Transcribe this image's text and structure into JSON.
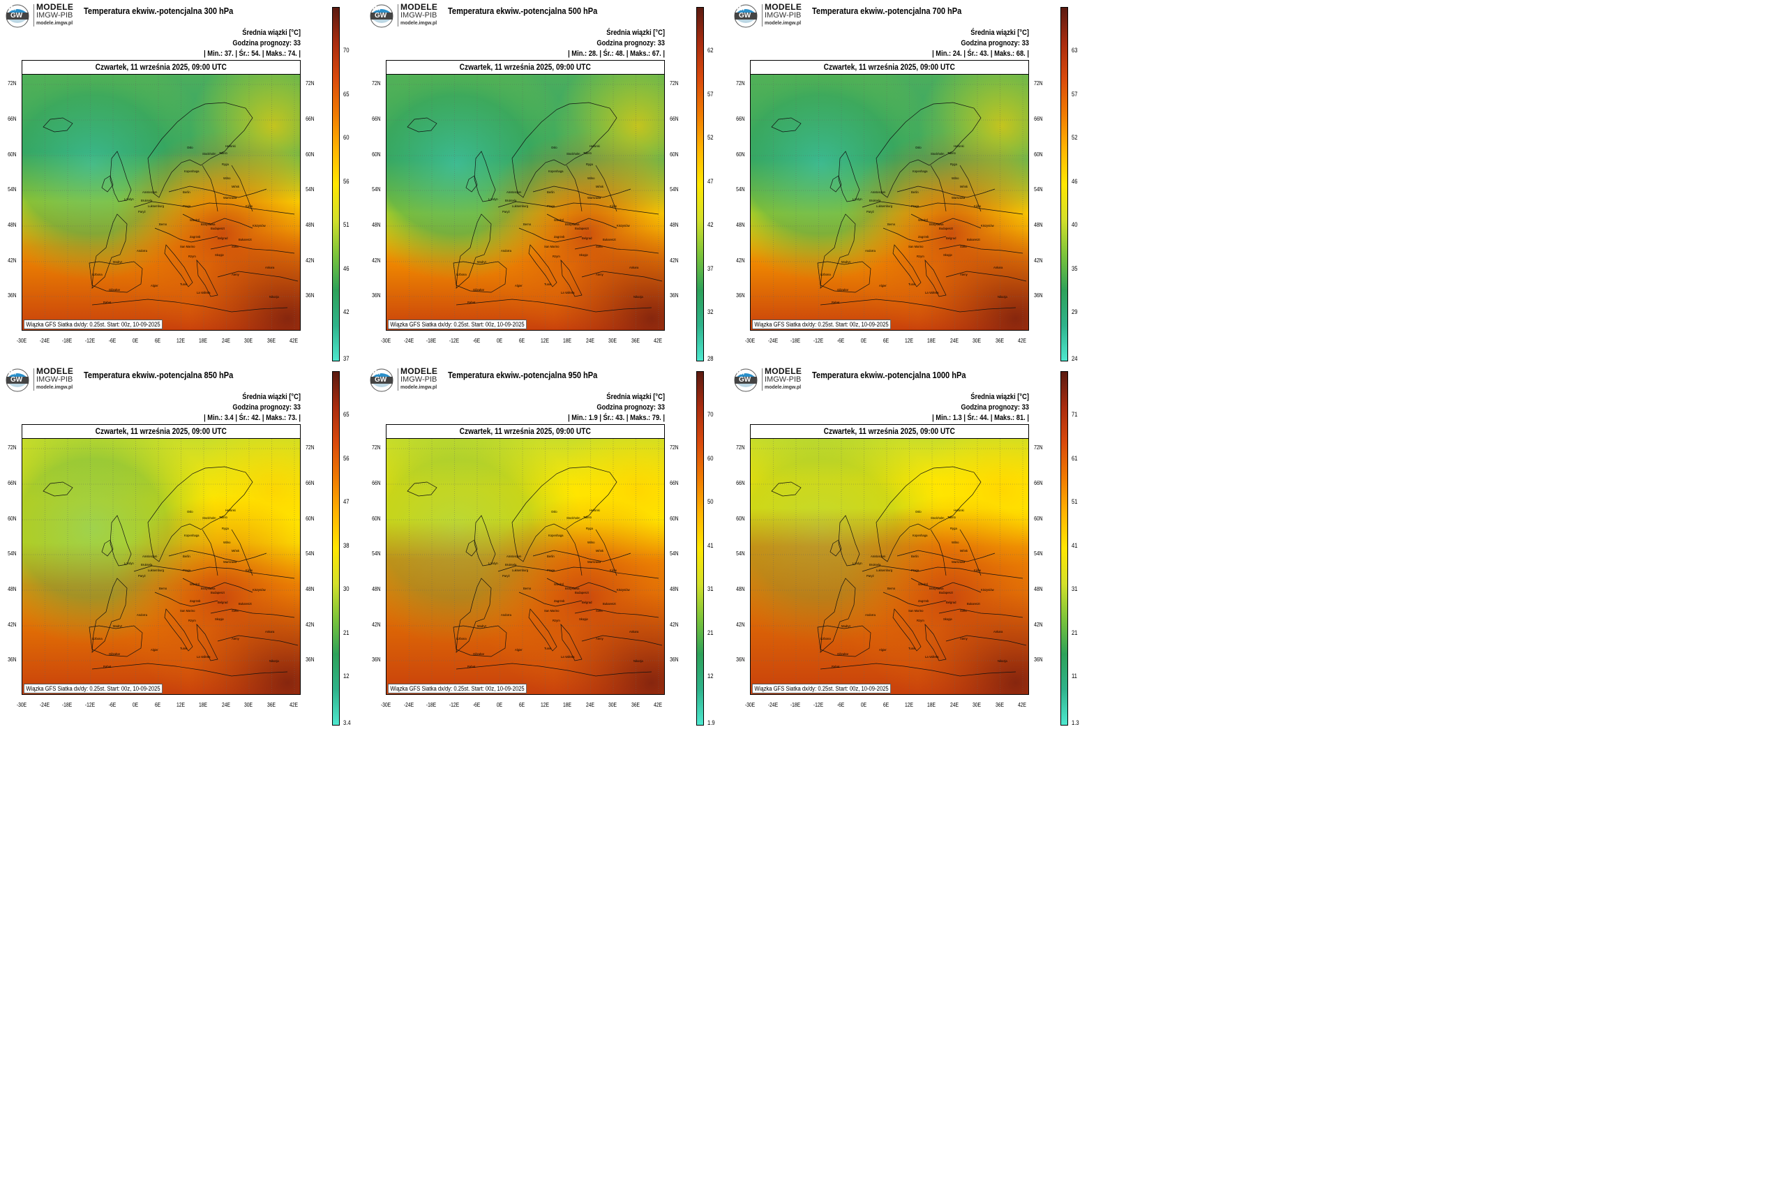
{
  "logo": {
    "line1": "MODELE",
    "line2": "IMGW-PIB",
    "line3": "modele.imgw.pl",
    "mark_top": "IM",
    "mark_bottom": "GW"
  },
  "common": {
    "meta_label": "Średnia wiązki [°C]",
    "forecast_hour": "Godzina prognozy: 33",
    "date": "Czwartek, 11 września 2025, 09:00 UTC",
    "footer": "Wiązka GFS Siatka dx/dy: 0.25st. Start: 00z, 10-09-2025",
    "lat_labels": [
      "72N",
      "66N",
      "60N",
      "54N",
      "48N",
      "42N",
      "36N"
    ],
    "lon_labels": [
      "-30E",
      "-24E",
      "-18E",
      "-12E",
      "-6E",
      "0E",
      "6E",
      "12E",
      "18E",
      "24E",
      "30E",
      "36E",
      "42E"
    ],
    "cities": [
      "Helsinki",
      "Tallinn",
      "Stockholm",
      "Oslo",
      "Ryga",
      "Kopenhaga",
      "Wilno",
      "Mińsk",
      "Amsterdam",
      "Berlin",
      "Warszawa",
      "Londyn",
      "Bruksela",
      "Luksemburg",
      "Praga",
      "Kijów",
      "Paryż",
      "Berno",
      "Wiedeń",
      "Bratysława",
      "Budapeszt",
      "Kiszyniów",
      "Zagrzeb",
      "Belgrad",
      "Bukareszt",
      "Sofia",
      "San Marino",
      "Rzym",
      "Skopje",
      "Andorra",
      "Madryt",
      "Lizbona",
      "Ankara",
      "Ateny",
      "Tunis",
      "Algier",
      "Gibraltar",
      "Rabat",
      "La Valletta",
      "Nikozja"
    ]
  },
  "panels": [
    {
      "title": "Temperatura ekwiw.-potencjalna 300 hPa",
      "stats": {
        "min_label": "Min.:",
        "min": "37.",
        "avg_label": "Śr.:",
        "avg": "54.",
        "max_label": "Maks.:",
        "max": "74."
      },
      "colorbar_labels": [
        "70",
        "65",
        "60",
        "56",
        "51",
        "46",
        "42",
        "37"
      ],
      "field": {
        "cold": 0.75,
        "front": 0.55
      }
    },
    {
      "title": "Temperatura ekwiw.-potencjalna 500 hPa",
      "stats": {
        "min_label": "Min.:",
        "min": "28.",
        "avg_label": "Śr.:",
        "avg": "48.",
        "max_label": "Maks.:",
        "max": "67."
      },
      "colorbar_labels": [
        "62",
        "57",
        "52",
        "47",
        "42",
        "37",
        "32",
        "28"
      ],
      "field": {
        "cold": 0.85,
        "front": 0.6
      }
    },
    {
      "title": "Temperatura ekwiw.-potencjalna 700 hPa",
      "stats": {
        "min_label": "Min.:",
        "min": "24.",
        "avg_label": "Śr.:",
        "avg": "43.",
        "max_label": "Maks.:",
        "max": "68."
      },
      "colorbar_labels": [
        "63",
        "57",
        "52",
        "46",
        "40",
        "35",
        "29",
        "24"
      ],
      "field": {
        "cold": 0.8,
        "front": 0.6
      }
    },
    {
      "title": "Temperatura ekwiw.-potencjalna 850 hPa",
      "stats": {
        "min_label": "Min.:",
        "min": "3.4",
        "avg_label": "Śr.:",
        "avg": "42.",
        "max_label": "Maks.:",
        "max": "73."
      },
      "colorbar_labels": [
        "65",
        "56",
        "47",
        "38",
        "30",
        "21",
        "12",
        "3.4"
      ],
      "field": {
        "cold": 0.5,
        "front": 0.45
      }
    },
    {
      "title": "Temperatura ekwiw.-potencjalna 950 hPa",
      "stats": {
        "min_label": "Min.:",
        "min": "1.9",
        "avg_label": "Śr.:",
        "avg": "43.",
        "max_label": "Maks.:",
        "max": "79."
      },
      "colorbar_labels": [
        "70",
        "60",
        "50",
        "41",
        "31",
        "21",
        "12",
        "1.9"
      ],
      "field": {
        "cold": 0.35,
        "front": 0.35
      }
    },
    {
      "title": "Temperatura ekwiw.-potencjalna 1000 hPa",
      "stats": {
        "min_label": "Min.:",
        "min": "1.3",
        "avg_label": "Śr.:",
        "avg": "44.",
        "max_label": "Maks.:",
        "max": "81."
      },
      "colorbar_labels": [
        "71",
        "61",
        "51",
        "41",
        "31",
        "21",
        "11",
        "1.3"
      ],
      "field": {
        "cold": 0.3,
        "front": 0.3
      }
    }
  ],
  "colors": {
    "scale": [
      "#4ee8cf",
      "#2fb38b",
      "#2ea25a",
      "#7cc43a",
      "#d4e02a",
      "#ffe600",
      "#ffb400",
      "#f07a00",
      "#d94a0c",
      "#a92c0f",
      "#5a1a10"
    ]
  }
}
